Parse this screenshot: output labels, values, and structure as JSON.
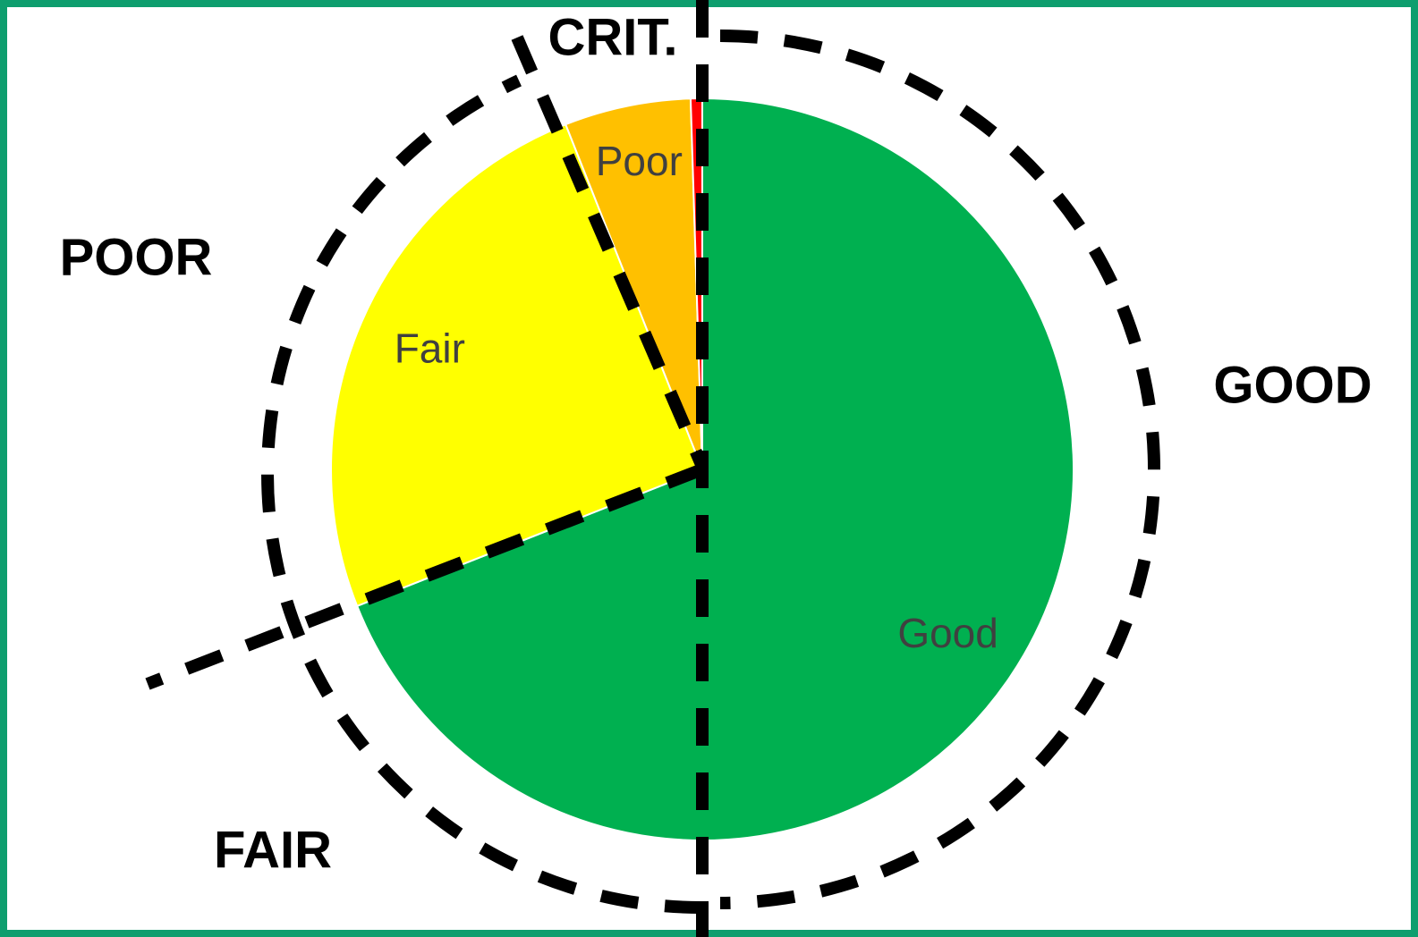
{
  "chart_data": {
    "type": "pie",
    "categories": [
      "Good",
      "Fair",
      "Poor",
      null
    ],
    "values": [
      69,
      25,
      5.5,
      0.5
    ],
    "colors": [
      "#00b050",
      "#ffff00",
      "#ffc000",
      "#ff0000"
    ],
    "annotations": [
      "CRIT.",
      "POOR",
      "GOOD",
      "FAIR"
    ]
  }
}
